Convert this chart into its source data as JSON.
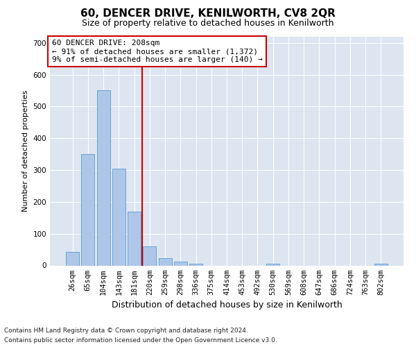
{
  "title": "60, DENCER DRIVE, KENILWORTH, CV8 2QR",
  "subtitle": "Size of property relative to detached houses in Kenilworth",
  "xlabel": "Distribution of detached houses by size in Kenilworth",
  "ylabel": "Number of detached properties",
  "footnote1": "Contains HM Land Registry data © Crown copyright and database right 2024.",
  "footnote2": "Contains public sector information licensed under the Open Government Licence v3.0.",
  "annotation_line1": "60 DENCER DRIVE: 208sqm",
  "annotation_line2": "← 91% of detached houses are smaller (1,372)",
  "annotation_line3": "9% of semi-detached houses are larger (140) →",
  "bar_labels": [
    "26sqm",
    "65sqm",
    "104sqm",
    "143sqm",
    "181sqm",
    "220sqm",
    "259sqm",
    "298sqm",
    "336sqm",
    "375sqm",
    "414sqm",
    "453sqm",
    "492sqm",
    "530sqm",
    "569sqm",
    "608sqm",
    "647sqm",
    "686sqm",
    "724sqm",
    "763sqm",
    "802sqm"
  ],
  "bar_values": [
    42,
    350,
    550,
    305,
    170,
    60,
    22,
    12,
    6,
    0,
    0,
    0,
    0,
    5,
    0,
    0,
    0,
    0,
    0,
    0,
    5
  ],
  "bar_color": "#aec6e8",
  "bar_edgecolor": "#5b9bd5",
  "vline_color": "#cc0000",
  "vline_x_index": 4.5,
  "ylim": [
    0,
    720
  ],
  "yticks": [
    0,
    100,
    200,
    300,
    400,
    500,
    600,
    700
  ],
  "background_color": "#dde5f0",
  "annotation_box_facecolor": "#ffffff",
  "annotation_box_edgecolor": "#cc0000",
  "title_fontsize": 11,
  "subtitle_fontsize": 9,
  "xlabel_fontsize": 9,
  "ylabel_fontsize": 8,
  "tick_fontsize": 7.5,
  "annotation_fontsize": 8,
  "footnote_fontsize": 6.5
}
